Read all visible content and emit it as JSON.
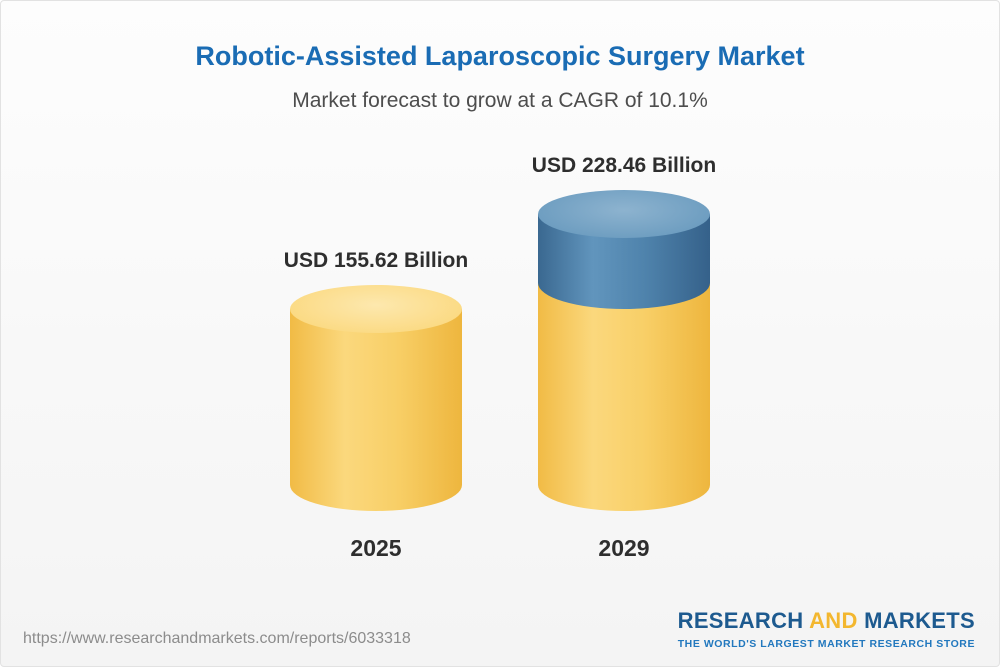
{
  "header": {
    "title": "Robotic-Assisted Laparoscopic Surgery Market",
    "subtitle": "Market forecast to grow at a CAGR of 10.1%"
  },
  "chart_data": {
    "type": "bar",
    "bar_style": "cylinder-3d",
    "categories": [
      "2025",
      "2029"
    ],
    "values": [
      155.62,
      228.46
    ],
    "value_labels": [
      "USD 155.62 Billion",
      "USD 228.46 Billion"
    ],
    "unit": "USD Billion",
    "title": "Robotic-Assisted Laparoscopic Surgery Market",
    "subtitle": "Market forecast to grow at a CAGR of 10.1%",
    "cagr": "10.1%",
    "legend_position": "none",
    "grid": false,
    "colors": {
      "base_segment": "#f5c75a",
      "growth_segment": "#4a7ea9"
    },
    "notes": "2029 cylinder shows 2025 base in yellow with growth increment stacked in blue"
  },
  "footer": {
    "url": "https://www.researchandmarkets.com/reports/6033318",
    "logo": {
      "word1": "RESEARCH",
      "word2": "AND",
      "word3": "MARKETS",
      "tagline": "THE WORLD'S LARGEST MARKET RESEARCH STORE"
    }
  }
}
